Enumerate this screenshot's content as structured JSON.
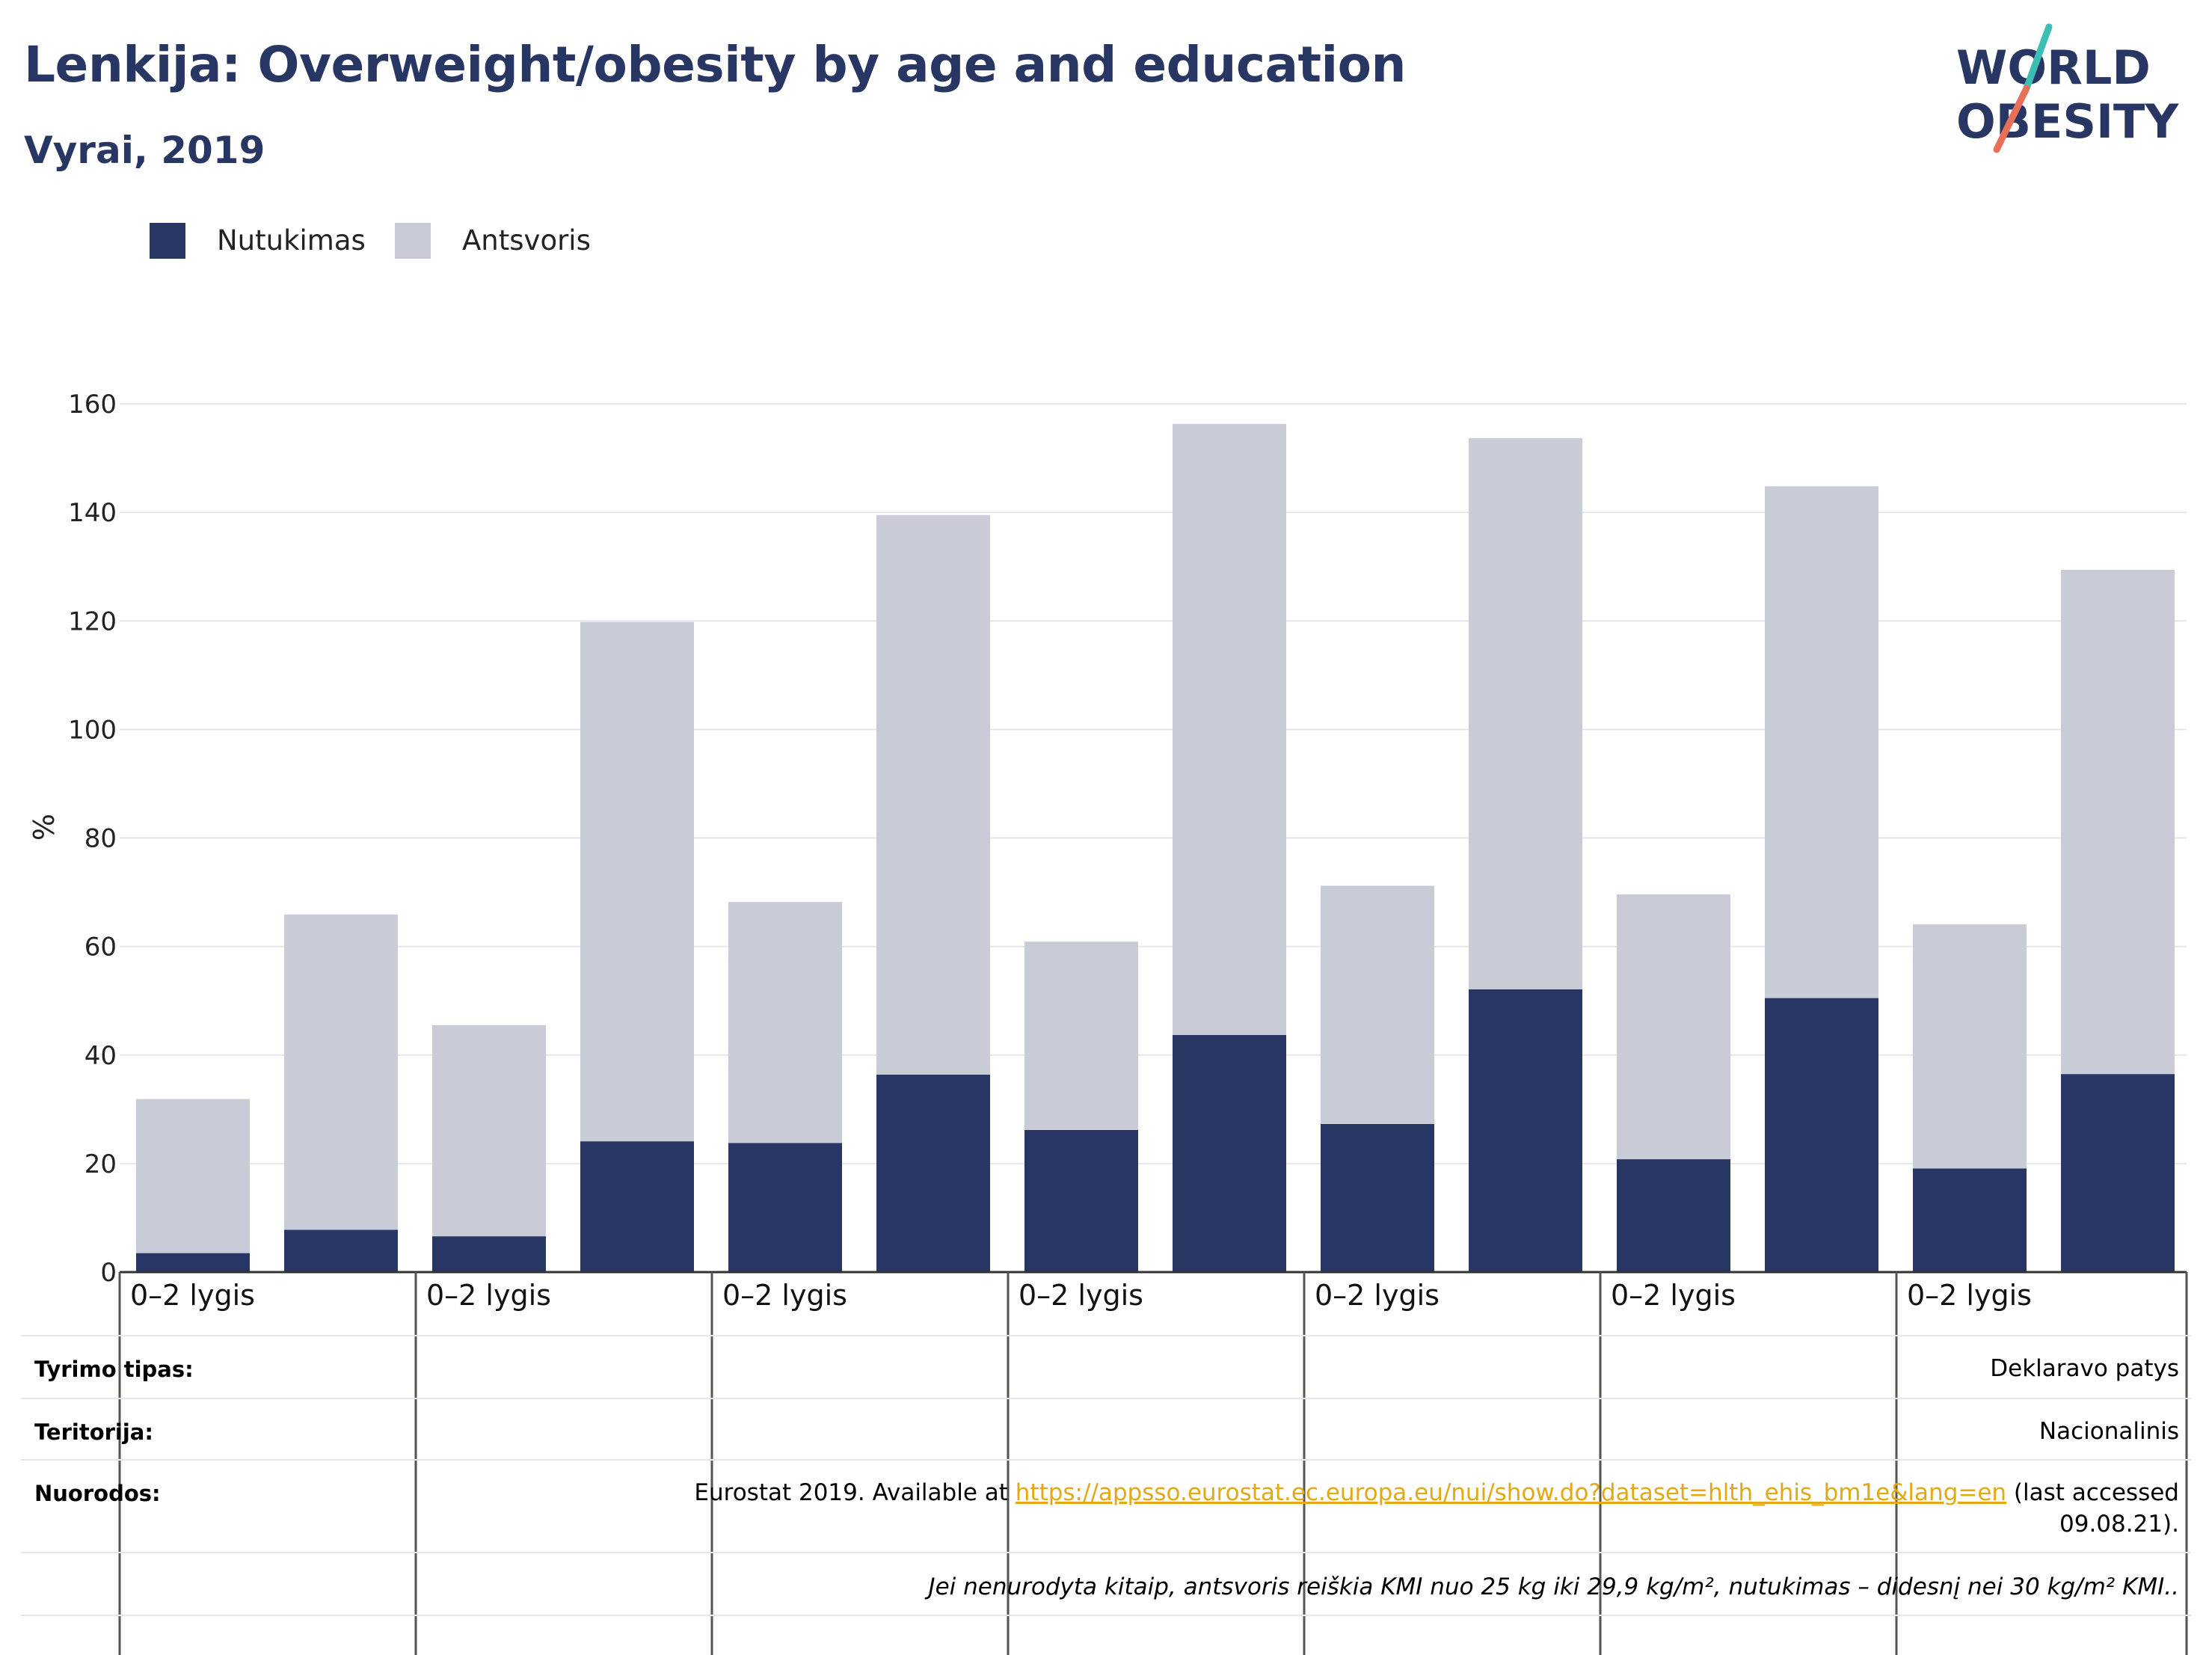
{
  "header": {
    "title": "Lenkija: Overweight/obesity by age and education",
    "subtitle": "Vyrai, 2019"
  },
  "logo": {
    "line1": "WORLD",
    "line2": "OBESITY",
    "colors": {
      "text": "#283663",
      "slash_top": "#3bbfb4",
      "slash_bottom": "#e8705a"
    }
  },
  "legend": [
    {
      "label": "Nutukimas",
      "color": "#283663"
    },
    {
      "label": "Antsvoris",
      "color": "#c9cbd7"
    }
  ],
  "chart_data": {
    "type": "bar",
    "stacked": true,
    "ylabel": "%",
    "ylim": [
      0,
      160
    ],
    "yticks": [
      0,
      20,
      40,
      60,
      80,
      100,
      120,
      140,
      160
    ],
    "grid": true,
    "legend_position": "top-left",
    "group_labels": [
      "0–2 lygis",
      "0–2 lygis",
      "0–2 lygis",
      "0–2 lygis",
      "0–2 lygis",
      "0–2 lygis",
      "0–2 lygis"
    ],
    "bars_per_group": 2,
    "series": [
      {
        "name": "Nutukimas",
        "color": "#283663",
        "values": [
          3.5,
          7.8,
          6.6,
          24.1,
          23.8,
          36.4,
          26.2,
          43.7,
          27.3,
          52.1,
          20.8,
          50.5,
          19.1,
          36.5
        ]
      },
      {
        "name": "Antsvoris",
        "color": "#c9cbd7",
        "values": [
          28.4,
          58.1,
          38.9,
          95.7,
          44.4,
          103.1,
          34.7,
          112.6,
          43.9,
          101.6,
          48.8,
          94.3,
          45.0,
          92.9
        ]
      }
    ]
  },
  "footer": {
    "rows": [
      {
        "label": "Tyrimo tipas:",
        "value": "Deklaravo patys"
      },
      {
        "label": "Teritorija:",
        "value": "Nacionalinis"
      },
      {
        "label": "Nuorodos:",
        "value_before": "Eurostat 2019. Available at ",
        "link": "https://appsso.eurostat.ec.europa.eu/nui/show.do?dataset=hlth_ehis_bm1e&lang=en",
        "value_after": " (last accessed",
        "value_line2": "09.08.21)."
      }
    ],
    "note": "Jei nenurodyta kitaip, antsvoris reiškia KMI nuo 25 kg iki 29,9 kg/m², nutukimas – didesnį nei 30 kg/m² KMI.."
  }
}
